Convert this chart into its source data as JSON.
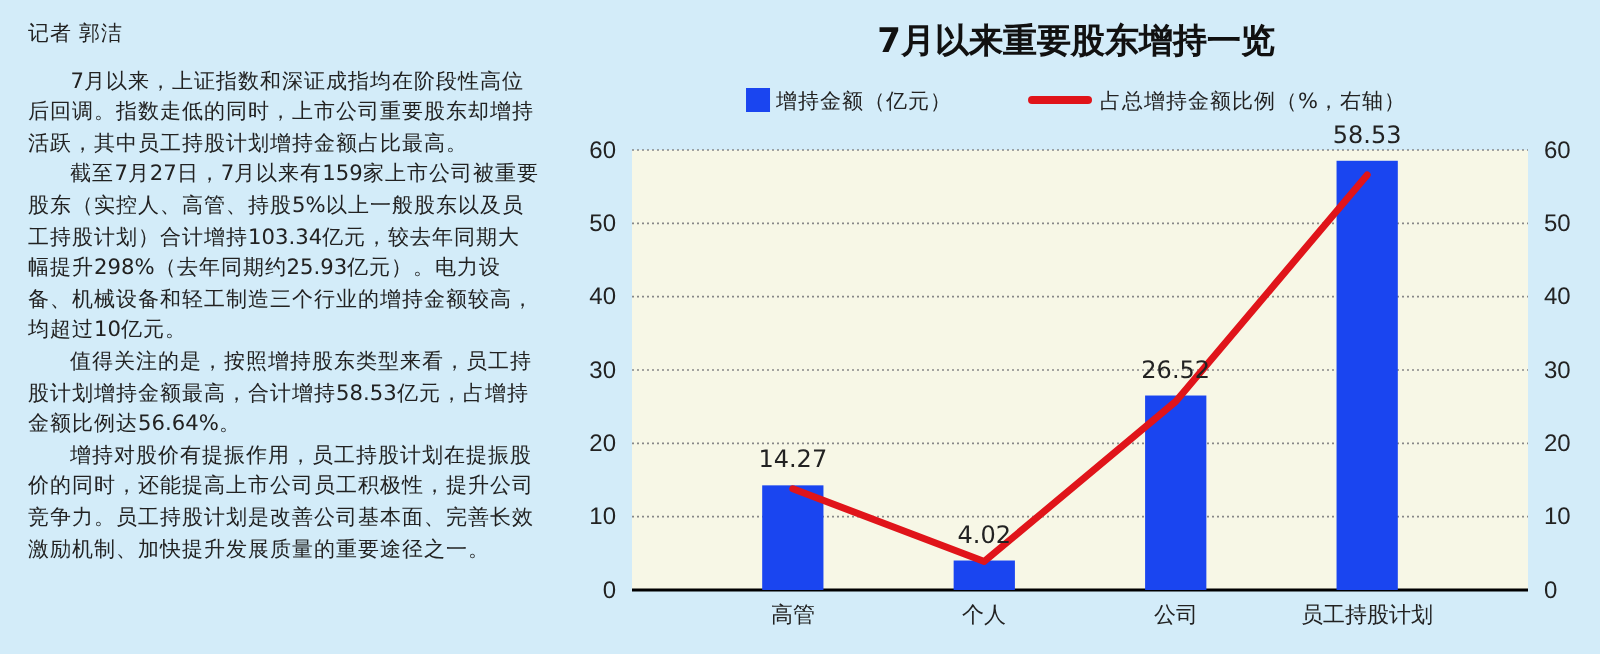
{
  "chart_data": {
    "type": "bar",
    "title": "7月以来重要股东增持一览",
    "categories": [
      "高管",
      "个人",
      "公司",
      "员工持股计划"
    ],
    "series": [
      {
        "name": "增持金额（亿元）",
        "color": "#1a45f0",
        "values": [
          14.27,
          4.02,
          26.52,
          58.53
        ],
        "value_labels": [
          "14.27",
          "4.02",
          "26.52",
          "58.53"
        ]
      },
      {
        "name": "占总增持金额比例（%，右轴）",
        "type": "line",
        "axis": "y2",
        "color": "#e0141a",
        "values": [
          13.8,
          3.9,
          25.7,
          56.6
        ]
      }
    ],
    "ylim": [
      0,
      60
    ],
    "yticks": [
      0,
      10,
      20,
      30,
      40,
      50,
      60
    ],
    "y2lim": [
      0,
      60
    ],
    "y2ticks": [
      0,
      10,
      20,
      30,
      40,
      50,
      60
    ],
    "grid": "y",
    "legend": "top",
    "marker": "none",
    "line_style": "solid",
    "annotations": [
      "记者 郭洁",
      "7月以来，上证指数和深证成指均在阶段性高位后回调。指数走低的同时，上市公司重要股东却增持活跃，其中员工持股计划增持金额占比最高。",
      "截至7月27日，7月以来有159家上市公司被重要股东（实控人、高管、持股5%以上一般股东以及员工持股计划）合计增持103.34亿元，较去年同期大幅提升298%（去年同期约25.93亿元）。电力设备、机械设备和轻工制造三个行业的增持金额较高，均超过10亿元。",
      "值得关注的是，按照增持股东类型来看，员工持股计划增持金额最高，合计增持58.53亿元，占增持金额比例达56.64%。",
      "增持对股价有提振作用，员工持股计划在提振股价的同时，还能提高上市公司员工积极性，提升公司竞争力。员工持股计划是改善公司基本面、完善长效激励机制、加快提升发展质量的重要途径之一。"
    ]
  }
}
